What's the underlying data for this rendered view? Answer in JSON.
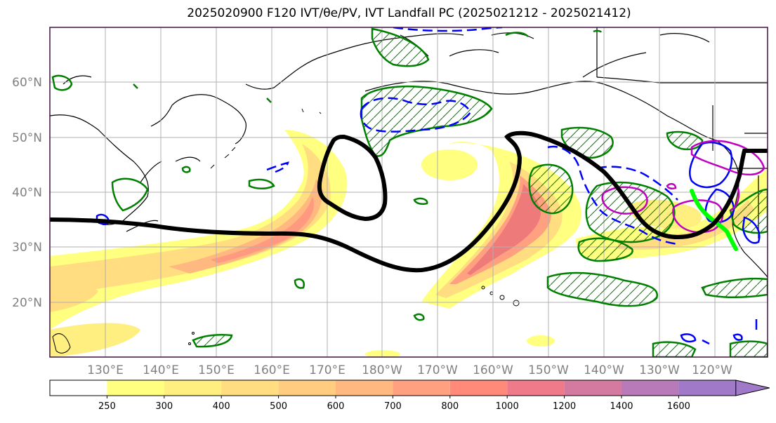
{
  "title": "2025020900 F120 IVT/θe/PV, IVT Landfall PC (2025021212 - 2025021412)",
  "lat_labels": [
    "60°N",
    "50°N",
    "40°N",
    "30°N",
    "20°N"
  ],
  "lon_labels": [
    "130°E",
    "140°E",
    "150°E",
    "160°E",
    "170°E",
    "180°W",
    "170°W",
    "160°W",
    "150°W",
    "140°W",
    "130°W",
    "120°W"
  ],
  "colorbar": {
    "levels": [
      "250",
      "300",
      "400",
      "500",
      "600",
      "700",
      "800",
      "1000",
      "1200",
      "1400",
      "1600"
    ],
    "colors": [
      "#ffffff",
      "#ffff80",
      "#ffee80",
      "#ffdd80",
      "#ffcc80",
      "#ffb880",
      "#ffa080",
      "#ff8a7a",
      "#ee7a8a",
      "#d47aa0",
      "#b87ab8",
      "#a07ac8"
    ]
  },
  "legend_colors": {
    "ivt_low": "#ffff80",
    "ivt_high": "#ee7080",
    "jet_line": "#000000",
    "pv_contour": "#008000",
    "theta_e_negative": "#0000ff",
    "theta_e_positive": "#c000c0",
    "landfall_line": "#00ff00"
  }
}
